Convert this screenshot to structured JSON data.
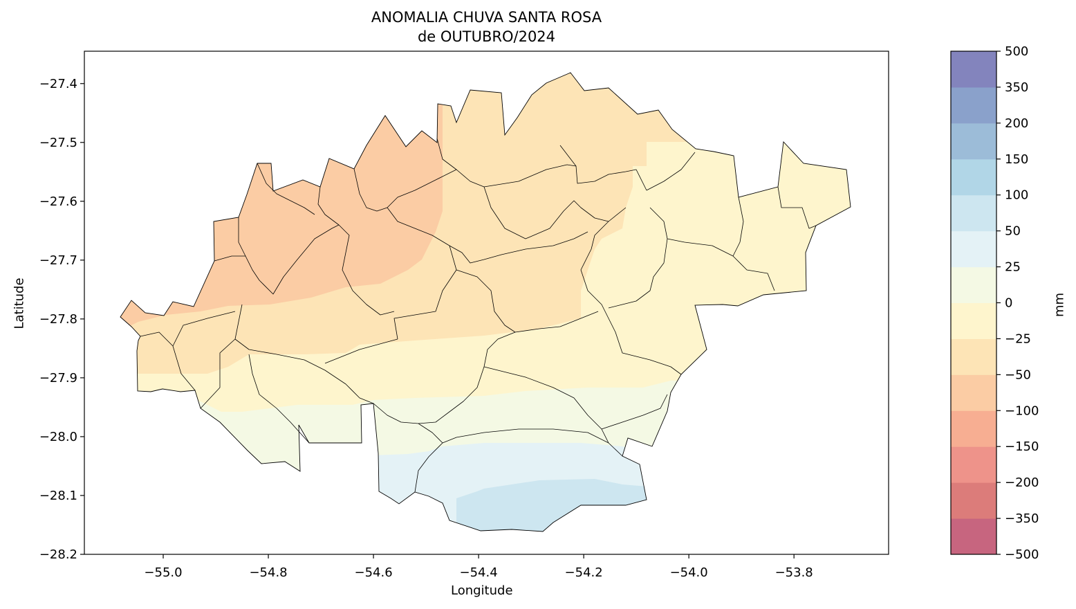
{
  "title_line1": "ANOMALIA CHUVA SANTA ROSA",
  "title_line2": "de OUTUBRO/2024",
  "chart_data": {
    "type": "heatmap",
    "title": "ANOMALIA CHUVA SANTA ROSA de OUTUBRO/2024",
    "xlabel": "Longitude",
    "ylabel": "Latitude",
    "xlim": [
      -55.15,
      -53.62
    ],
    "ylim": [
      -28.2,
      -27.345
    ],
    "x_ticks": [
      "−55.0",
      "−54.8",
      "−54.6",
      "−54.4",
      "−54.2",
      "−54.0",
      "−53.8"
    ],
    "x_tick_values": [
      -55.0,
      -54.8,
      -54.6,
      -54.4,
      -54.2,
      -54.0,
      -53.8
    ],
    "y_ticks": [
      "−27.4",
      "−27.5",
      "−27.6",
      "−27.7",
      "−27.8",
      "−27.9",
      "−28.0",
      "−28.1",
      "−28.2"
    ],
    "y_tick_values": [
      -27.4,
      -27.5,
      -27.6,
      -27.7,
      -27.8,
      -27.9,
      -28.0,
      -28.1,
      -28.2
    ],
    "colorbar": {
      "label": "mm",
      "levels": [
        "−500",
        "−350",
        "−200",
        "−150",
        "−100",
        "−50",
        "−25",
        "0",
        "25",
        "50",
        "100",
        "150",
        "200",
        "350",
        "500"
      ],
      "colors": [
        "#c7657f",
        "#dc7c7a",
        "#ee938a",
        "#f7ae92",
        "#fbcca4",
        "#fde4b6",
        "#fef5cd",
        "#f4f9e4",
        "#e4f2f6",
        "#cde6f0",
        "#b1d6e7",
        "#9cbcd8",
        "#8aa1cb",
        "#8384bd"
      ]
    },
    "field_description": "Negative anomaly (−100 to −50 mm) in northwest, near −50 to −25 mm across north-center, −25 to 0 mm in east and center, 0 to 25 mm and 25 to 100 mm toward the south."
  }
}
